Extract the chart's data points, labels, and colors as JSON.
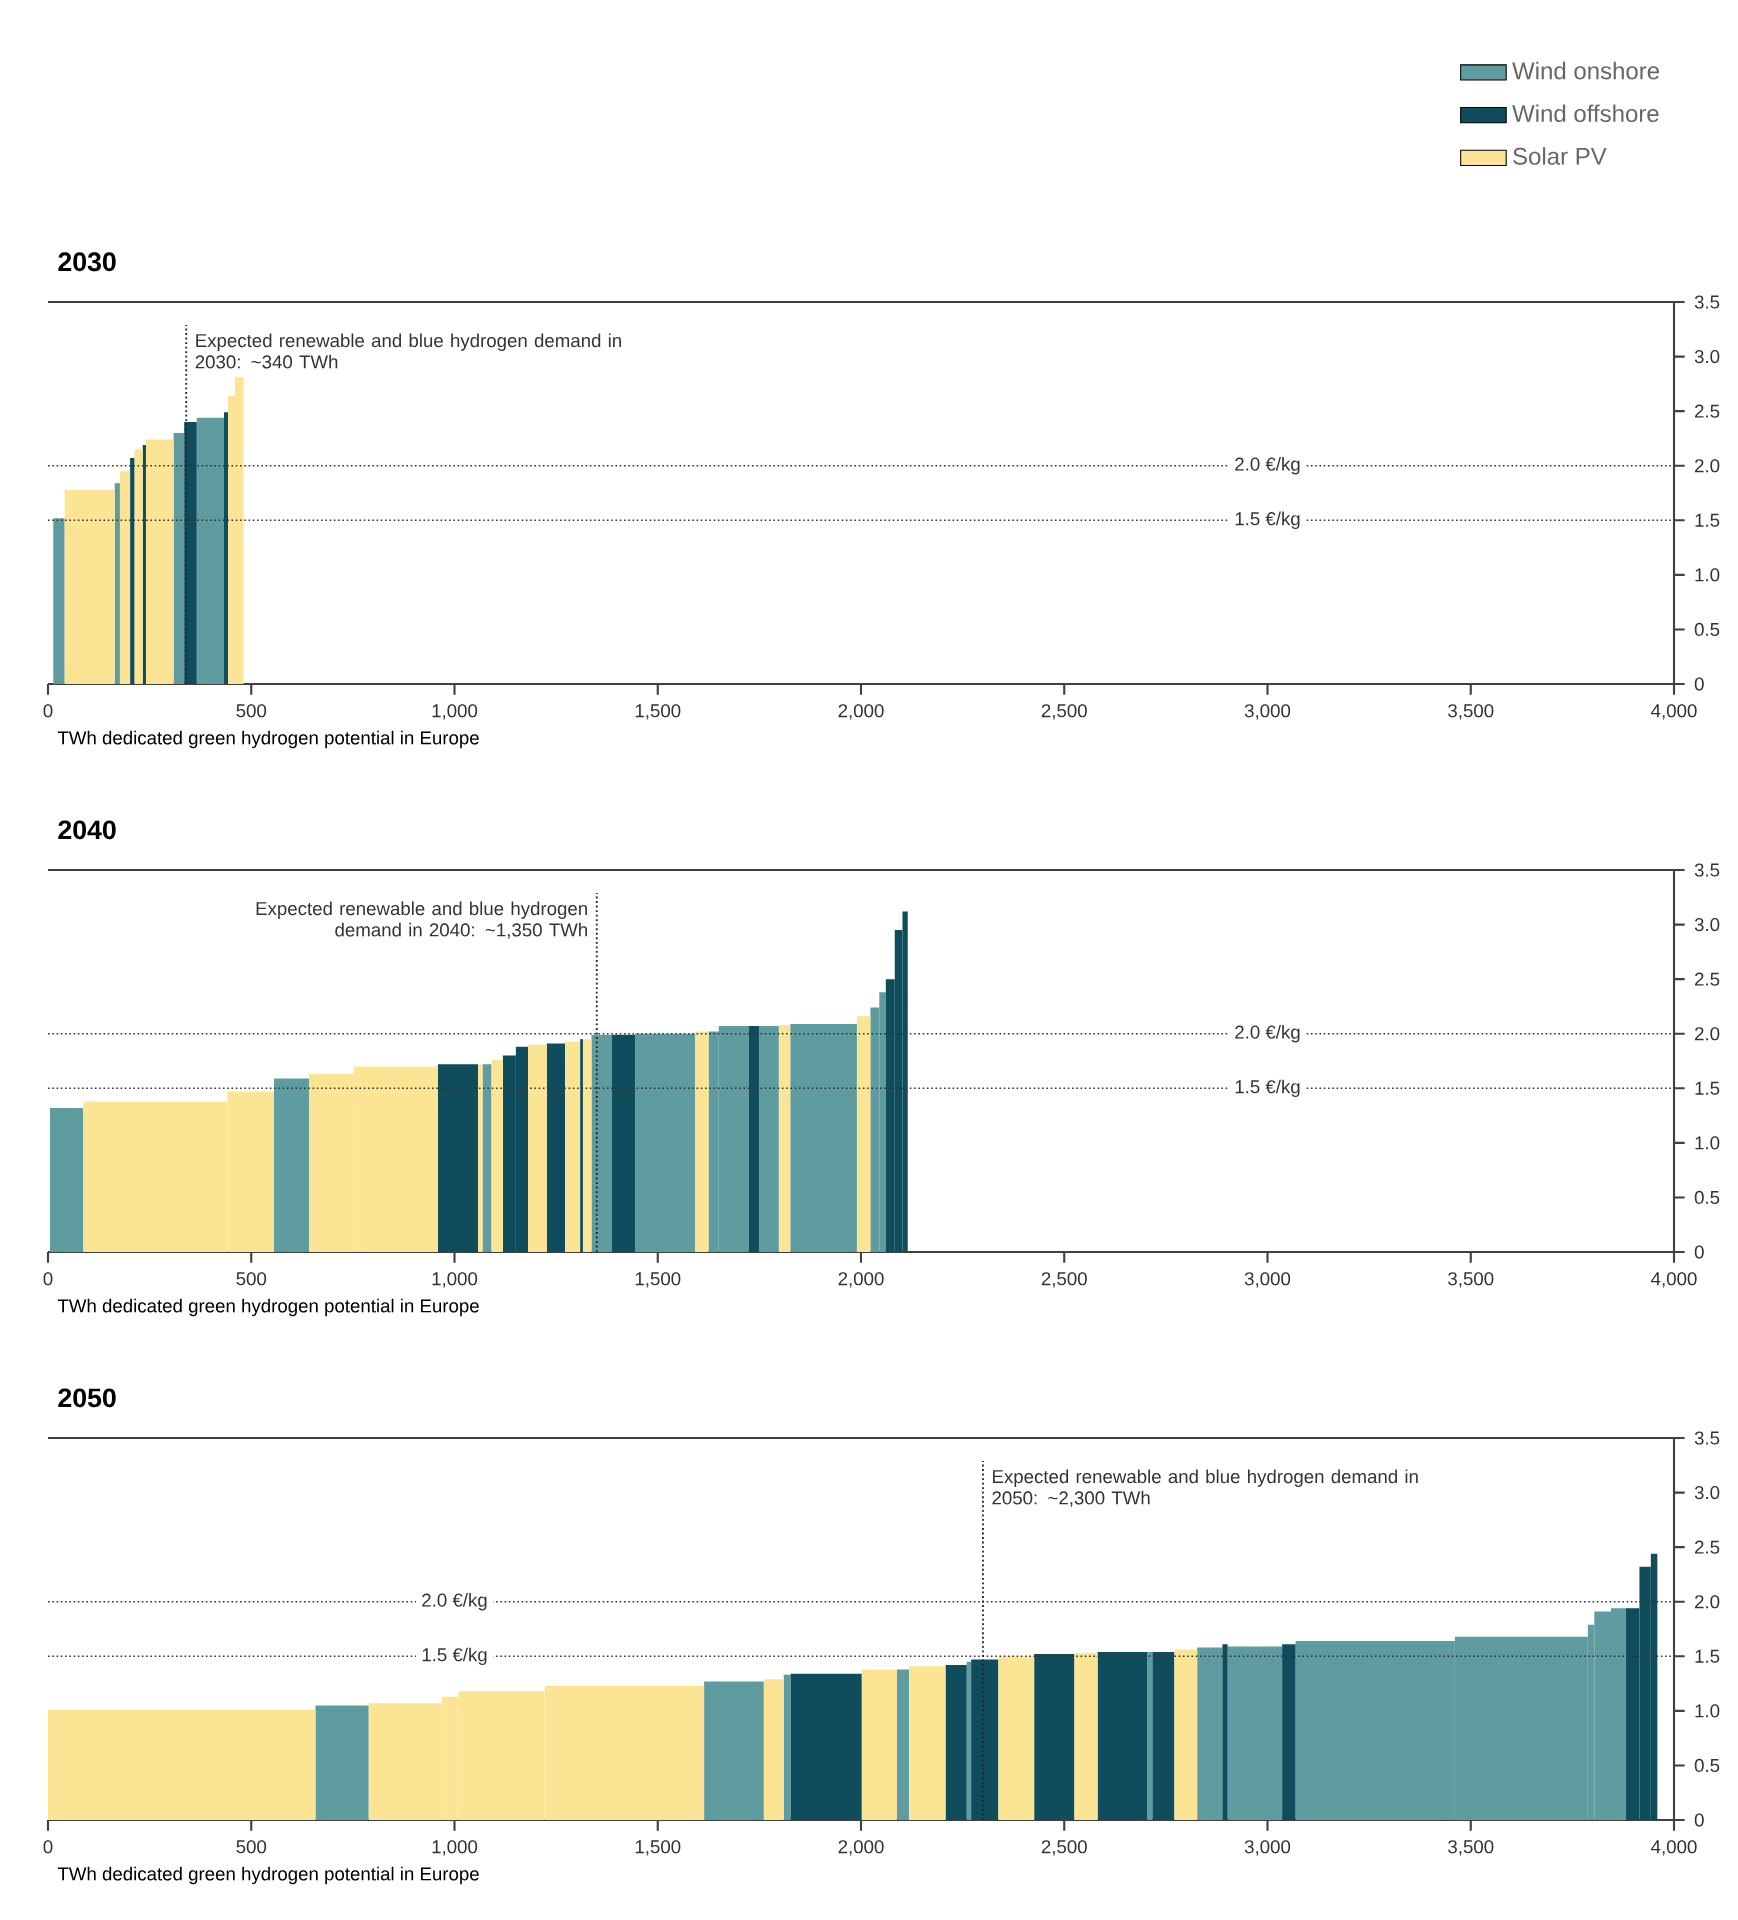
{
  "chart_data": [
    {
      "type": "histogram",
      "title": "2030",
      "xlabel": "TWh dedicated green hydrogen potential in Europe",
      "legend": "top right",
      "bins": [
        13,
        41,
        164,
        177,
        202,
        213,
        233,
        241,
        309,
        335,
        366,
        433,
        443,
        460,
        481
      ],
      "series": [
        {
          "name": "Wind onshore",
          "color": "#5e9ca0",
          "values": [
            1.52,
            null,
            1.84,
            null,
            null,
            null,
            null,
            null,
            2.3,
            null,
            2.44,
            null,
            null,
            null
          ]
        },
        {
          "name": "Wind offshore",
          "color": "#0f4c5c",
          "values": [
            null,
            null,
            null,
            null,
            2.07,
            null,
            2.19,
            null,
            null,
            2.4,
            null,
            2.49,
            null,
            null
          ]
        },
        {
          "name": "Solar PV",
          "color": "#fbe595",
          "values": [
            null,
            1.78,
            null,
            1.95,
            null,
            2.15,
            null,
            2.24,
            null,
            null,
            null,
            null,
            2.64,
            2.81
          ]
        }
      ],
      "xlim": [
        0,
        4000
      ],
      "xticks": [
        0,
        500,
        {
          "value": 1000,
          "label": "1,000"
        },
        {
          "value": 1500,
          "label": "1,500"
        },
        {
          "value": 2000,
          "label": "2,000"
        },
        {
          "value": 2500,
          "label": "2,500"
        },
        {
          "value": 3000,
          "label": "3,000"
        },
        {
          "value": 3500,
          "label": "3,500"
        },
        {
          "value": 4000,
          "label": "4,000"
        }
      ],
      "ylim": [
        0,
        3.5
      ],
      "yticks": [
        0,
        0.5,
        {
          "value": 1,
          "label": "1.0"
        },
        1.5,
        {
          "value": 2,
          "label": "2.0"
        },
        2.5,
        {
          "value": 3,
          "label": "3.0"
        },
        3.5
      ],
      "ref_lines": [
        {
          "axis": "y",
          "value": 2,
          "label": "2.0 €/kg",
          "line_style": "dotted"
        },
        {
          "axis": "y",
          "value": 1.5,
          "label": "1.5 €/kg",
          "line_style": "dotted"
        },
        {
          "axis": "x",
          "value": 340,
          "label": "Expected renewable and blue hydrogen demand in 2030: ~340 TWh",
          "line_style": "dotted"
        }
      ]
    },
    {
      "type": "histogram",
      "title": "2040",
      "xlabel": "TWh dedicated green hydrogen potential in Europe",
      "bins": [
        5,
        87,
        441,
        556,
        642,
        753,
        959,
        1058,
        1069,
        1091,
        1119,
        1151,
        1181,
        1227,
        1272,
        1309,
        1316,
        1337,
        1387,
        1444,
        1592,
        1625,
        1650,
        1724,
        1749,
        1798,
        1826,
        1990,
        2023,
        2045,
        2061,
        2083,
        2102,
        2115
      ],
      "series": [
        {
          "color": "#5e9ca0",
          "values": [
            1.32,
            null,
            null,
            1.59,
            null,
            null,
            null,
            null,
            1.72,
            null,
            null,
            null,
            null,
            null,
            null,
            null,
            null,
            1.99,
            null,
            2.0,
            null,
            2.02,
            2.07,
            null,
            2.07,
            null,
            2.09,
            null,
            2.24,
            2.38,
            null,
            null,
            null
          ]
        },
        {
          "color": "#0f4c5c",
          "values": [
            null,
            null,
            null,
            null,
            null,
            null,
            1.72,
            null,
            null,
            null,
            1.8,
            1.88,
            null,
            1.91,
            null,
            1.95,
            null,
            null,
            1.99,
            null,
            null,
            null,
            null,
            2.07,
            null,
            null,
            null,
            null,
            null,
            null,
            2.5,
            2.95,
            3.12
          ]
        },
        {
          "color": "#fbe595",
          "values": [
            null,
            1.38,
            1.47,
            null,
            1.63,
            1.7,
            null,
            1.72,
            null,
            1.76,
            null,
            null,
            1.9,
            null,
            1.93,
            null,
            1.95,
            null,
            null,
            null,
            2.02,
            null,
            null,
            null,
            null,
            2.08,
            null,
            2.16,
            null,
            null,
            null,
            null,
            null
          ]
        }
      ],
      "xlim": [
        0,
        4000
      ],
      "xticks": [
        0,
        500,
        {
          "value": 1000,
          "label": "1,000"
        },
        {
          "value": 1500,
          "label": "1,500"
        },
        {
          "value": 2000,
          "label": "2,000"
        },
        {
          "value": 2500,
          "label": "2,500"
        },
        {
          "value": 3000,
          "label": "3,000"
        },
        {
          "value": 3500,
          "label": "3,500"
        },
        {
          "value": 4000,
          "label": "4,000"
        }
      ],
      "ylim": [
        0,
        3.5
      ],
      "yticks": [
        0,
        0.5,
        {
          "value": 1,
          "label": "1.0"
        },
        1.5,
        {
          "value": 2,
          "label": "2.0"
        },
        2.5,
        {
          "value": 3,
          "label": "3.0"
        },
        3.5
      ],
      "ref_lines": [
        {
          "axis": "y",
          "value": 2,
          "label": "2.0 €/kg",
          "line_style": "dotted"
        },
        {
          "axis": "y",
          "value": 1.5,
          "label": "1.5 €/kg",
          "line_style": "dotted"
        },
        {
          "axis": "x",
          "value": 1350,
          "label": "Expected renewable and blue hydrogen demand in 2040: ~1,350 TWh",
          "line_style": "dotted"
        }
      ]
    },
    {
      "type": "histogram",
      "title": "2050",
      "xlabel": "TWh dedicated green hydrogen potential in Europe",
      "bins": [
        0,
        658,
        789,
        969,
        1010,
        1222,
        1614,
        1761,
        1810,
        1827,
        2002,
        2088,
        2118,
        2208,
        2260,
        2271,
        2338,
        2426,
        2525,
        2582,
        2704,
        2717,
        2771,
        2827,
        2889,
        2902,
        3036,
        3069,
        3461,
        3788,
        3804,
        3845,
        3882,
        3915,
        3943,
        3959
      ],
      "series": [
        {
          "color": "#5e9ca0",
          "values": [
            null,
            1.05,
            null,
            null,
            null,
            null,
            1.27,
            null,
            1.33,
            null,
            null,
            1.38,
            null,
            null,
            1.45,
            null,
            null,
            null,
            null,
            null,
            1.54,
            null,
            null,
            1.58,
            null,
            1.59,
            null,
            1.64,
            1.68,
            1.79,
            1.91,
            1.94,
            null,
            null,
            null
          ]
        },
        {
          "color": "#0f4c5c",
          "values": [
            null,
            null,
            null,
            null,
            null,
            null,
            null,
            null,
            null,
            1.34,
            null,
            null,
            null,
            1.42,
            null,
            1.47,
            null,
            1.52,
            null,
            1.54,
            null,
            1.54,
            null,
            null,
            1.61,
            null,
            1.61,
            null,
            null,
            null,
            null,
            null,
            1.94,
            2.32,
            2.44
          ]
        },
        {
          "color": "#fbe595",
          "values": [
            1.01,
            null,
            1.07,
            1.13,
            1.18,
            1.23,
            null,
            1.29,
            null,
            null,
            1.38,
            null,
            1.41,
            null,
            null,
            null,
            1.5,
            null,
            1.53,
            null,
            null,
            null,
            1.56,
            null,
            null,
            null,
            null,
            null,
            null,
            null,
            null,
            null,
            null,
            null,
            null
          ]
        }
      ],
      "xlim": [
        0,
        4000
      ],
      "xticks": [
        0,
        500,
        {
          "value": 1000,
          "label": "1,000"
        },
        {
          "value": 1500,
          "label": "1,500"
        },
        {
          "value": 2000,
          "label": "2,000"
        },
        {
          "value": 2500,
          "label": "2,500"
        },
        {
          "value": 3000,
          "label": "3,000"
        },
        {
          "value": 3500,
          "label": "3,500"
        },
        {
          "value": 4000,
          "label": "4,000"
        }
      ],
      "ylim": [
        0,
        3.5
      ],
      "yticks": [
        0,
        0.5,
        {
          "value": 1,
          "label": "1.0"
        },
        1.5,
        {
          "value": 2,
          "label": "2.0"
        },
        2.5,
        {
          "value": 3,
          "label": "3.0"
        },
        3.5
      ],
      "ref_lines": [
        {
          "axis": "y",
          "value": 2,
          "label": "2.0 €/kg",
          "line_style": "dotted"
        },
        {
          "axis": "y",
          "value": 1.5,
          "label": "1.5 €/kg",
          "line_style": "dotted"
        },
        {
          "axis": "x",
          "value": 2300,
          "label": "Expected renewable and blue hydrogen demand in 2050: ~2,300 TWh",
          "line_style": "dotted"
        }
      ]
    }
  ]
}
